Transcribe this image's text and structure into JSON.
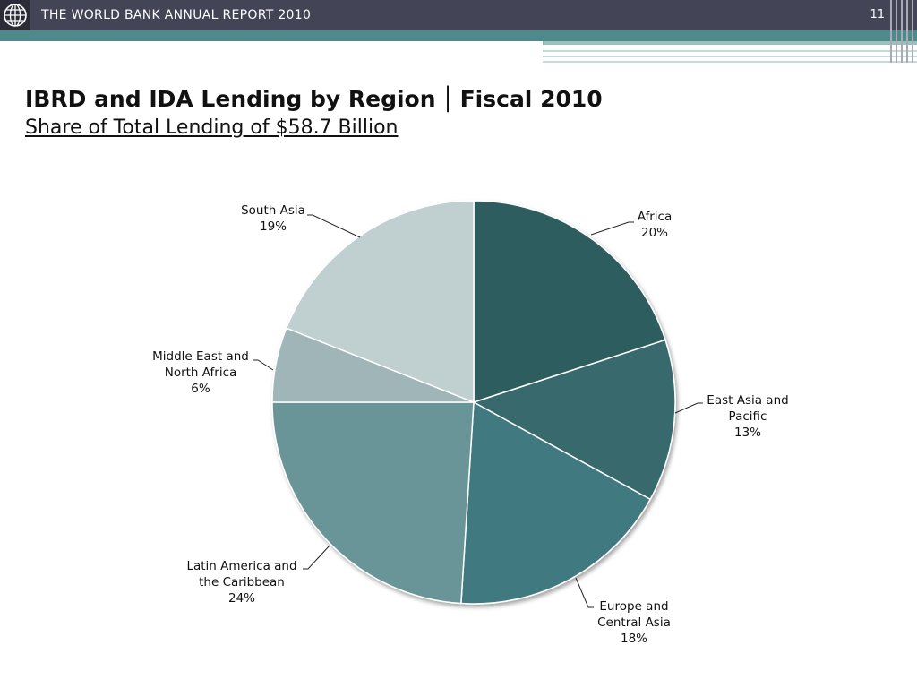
{
  "header": {
    "title": "THE WORLD BANK ANNUAL REPORT 2010",
    "page_number": "11"
  },
  "slide": {
    "title_main": "IBRD and IDA Lending by Region",
    "title_separator": "│",
    "title_year": "Fiscal 2010",
    "subtitle": "Share of Total Lending of $58.7 Billion"
  },
  "colors": {
    "header_bar": "#434455",
    "teal_band": "#4e8a8c"
  },
  "chart_data": {
    "type": "pie",
    "title": "IBRD and IDA Lending by Region │ Fiscal 2010",
    "subtitle": "Share of Total Lending of $58.7 Billion",
    "slices": [
      {
        "label": [
          "Africa"
        ],
        "value": 20,
        "pct_text": "20%",
        "color": "#2f5d61"
      },
      {
        "label": [
          "East Asia and",
          "Pacific"
        ],
        "value": 13,
        "pct_text": "13%",
        "color": "#386a6d"
      },
      {
        "label": [
          "Europe and",
          "Central Asia"
        ],
        "value": 18,
        "pct_text": "18%",
        "color": "#407a80"
      },
      {
        "label": [
          "Latin America and",
          "the Caribbean"
        ],
        "value": 24,
        "pct_text": "24%",
        "color": "#6a9598"
      },
      {
        "label": [
          "Middle East and",
          "North Africa"
        ],
        "value": 6,
        "pct_text": "6%",
        "color": "#9fb5b7"
      },
      {
        "label": [
          "South Asia"
        ],
        "value": 19,
        "pct_text": "19%",
        "color": "#c0cfd0"
      }
    ],
    "start_angle": "12 o'clock",
    "direction": "clockwise",
    "legend": "none"
  }
}
